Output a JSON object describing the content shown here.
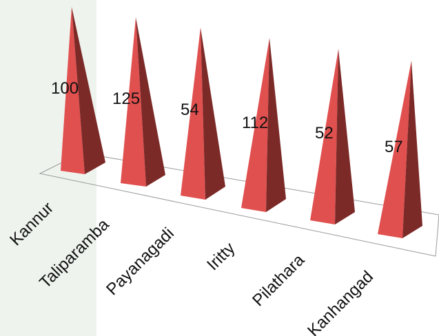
{
  "chart_data": {
    "type": "bar",
    "style": "3d-pyramid",
    "categories": [
      "Kannur",
      "Taliparamba",
      "Payanagadi",
      "Iritty",
      "Pilathara",
      "Kanhangad"
    ],
    "values": [
      100,
      125,
      54,
      112,
      52,
      57
    ],
    "data_labels": [
      "100",
      "125",
      "54",
      "112",
      "52",
      "57"
    ],
    "title": "",
    "xlabel": "",
    "ylabel": "",
    "grid": false,
    "legend": "none",
    "colors": {
      "front": "#e0504f",
      "side": "#7c2a28",
      "floor_line": "#9a9a9a",
      "panel": "#eef3ee"
    }
  }
}
